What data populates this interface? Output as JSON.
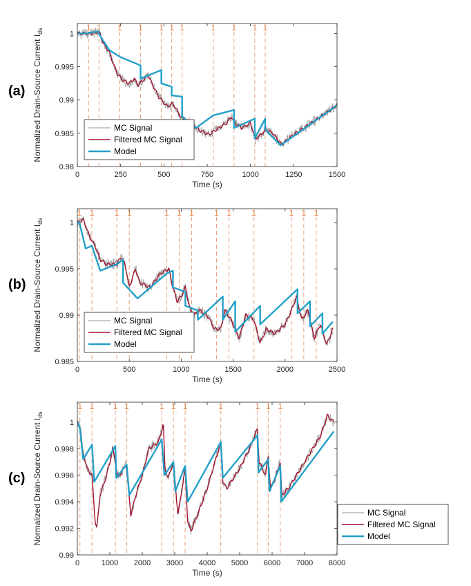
{
  "figure": {
    "ylabel": "Normalized Drain-Source Current I",
    "ylabel_sub": "ds",
    "legend": [
      "MC Signal",
      "Filtered MC Signal",
      "Model"
    ],
    "colors": {
      "mc": "#a9a9a9",
      "filtered": "#a2142f",
      "model": "#22a0c8",
      "event": "#e8a07a",
      "eventText": "#e07b39",
      "axis": "#262626"
    }
  },
  "chart_data": [
    {
      "type": "line",
      "panel_label": "(a)",
      "xlabel": "Time (s)",
      "xlim": [
        0,
        1500
      ],
      "ylim": [
        0.98,
        1.0015
      ],
      "xticks": [
        0,
        250,
        500,
        750,
        1000,
        1250,
        1500
      ],
      "xtick_labels": [
        "0",
        "250",
        "500",
        "750",
        "1000",
        "1250",
        "1500"
      ],
      "yticks": [
        0.98,
        0.985,
        0.99,
        0.995,
        1
      ],
      "ytick_labels": [
        "0.98",
        "0.985",
        "0.99",
        "0.995",
        "1"
      ],
      "event_marker": "1",
      "events": [
        65,
        125,
        245,
        365,
        485,
        545,
        605,
        785,
        905,
        1025,
        1085
      ],
      "model": {
        "x": [
          0,
          65,
          65,
          125,
          125,
          185,
          185,
          245,
          245,
          365,
          365,
          485,
          485,
          545,
          545,
          605,
          605,
          685,
          785,
          785,
          905,
          905,
          1025,
          1025,
          1085,
          1085,
          1175,
          1500
        ],
        "y": [
          1.0,
          1.0,
          1.0001,
          1.0003,
          0.9999,
          0.9975,
          0.9975,
          0.9965,
          0.9965,
          0.9952,
          0.9932,
          0.9945,
          0.9925,
          0.992,
          0.9907,
          0.9905,
          0.9875,
          0.9858,
          0.9877,
          0.9877,
          0.9885,
          0.9858,
          0.9872,
          0.9842,
          0.9872,
          0.9855,
          0.9832,
          0.9892
        ]
      },
      "signal": {
        "x": [
          0,
          100,
          120,
          130,
          150,
          185,
          200,
          230,
          260,
          300,
          330,
          350,
          380,
          410,
          430,
          470,
          520,
          550,
          575,
          600,
          640,
          700,
          760,
          800,
          860,
          890,
          910,
          950,
          1000,
          1030,
          1060,
          1090,
          1130,
          1180,
          1250,
          1350,
          1500
        ],
        "y": [
          1.0,
          1.0,
          1.0003,
          1.0,
          0.9985,
          0.9972,
          0.996,
          0.994,
          0.993,
          0.9925,
          0.9932,
          0.9922,
          0.993,
          0.9937,
          0.9925,
          0.9905,
          0.989,
          0.9895,
          0.9885,
          0.9873,
          0.9868,
          0.9855,
          0.9848,
          0.9855,
          0.9865,
          0.9875,
          0.9865,
          0.9858,
          0.9865,
          0.9842,
          0.9848,
          0.9855,
          0.985,
          0.9833,
          0.9848,
          0.9865,
          0.9892
        ]
      }
    },
    {
      "type": "line",
      "panel_label": "(b)",
      "xlabel": "Time (s)",
      "xlim": [
        0,
        2500
      ],
      "ylim": [
        0.985,
        1.0015
      ],
      "xticks": [
        0,
        500,
        1000,
        1500,
        2000,
        2500
      ],
      "xtick_labels": [
        "0",
        "500",
        "1000",
        "1500",
        "2000",
        "2500"
      ],
      "yticks": [
        0.985,
        0.99,
        0.995,
        1
      ],
      "ytick_labels": [
        "0.985",
        "0.99",
        "0.995",
        "1"
      ],
      "event_marker": "1",
      "events": [
        20,
        140,
        380,
        500,
        860,
        980,
        1100,
        1340,
        1460,
        1700,
        2060,
        2180,
        2300
      ],
      "model": {
        "x": [
          0,
          20,
          20,
          80,
          140,
          140,
          220,
          380,
          380,
          440,
          440,
          580,
          860,
          920,
          920,
          1040,
          1040,
          1160,
          1160,
          1400,
          1400,
          1520,
          1520,
          1760,
          1760,
          2120,
          2120,
          2240,
          2240,
          2360,
          2360,
          2460
        ],
        "y": [
          1.0,
          1.0,
          1.0,
          0.9972,
          0.9975,
          0.9975,
          0.9948,
          0.9955,
          0.9955,
          0.996,
          0.9935,
          0.9918,
          0.9945,
          0.9948,
          0.993,
          0.9925,
          0.991,
          0.9905,
          0.9895,
          0.992,
          0.9895,
          0.9915,
          0.9882,
          0.991,
          0.989,
          0.9928,
          0.9902,
          0.9915,
          0.9888,
          0.9902,
          0.988,
          0.9893
        ]
      },
      "signal": {
        "x": [
          0,
          60,
          100,
          140,
          170,
          220,
          280,
          380,
          420,
          460,
          500,
          560,
          600,
          700,
          800,
          880,
          920,
          960,
          1000,
          1040,
          1080,
          1120,
          1180,
          1250,
          1320,
          1380,
          1420,
          1480,
          1560,
          1620,
          1700,
          1760,
          1820,
          1900,
          2000,
          2060,
          2110,
          2160,
          2220,
          2280,
          2340,
          2400,
          2460
        ],
        "y": [
          1.0,
          1.0003,
          0.999,
          0.998,
          0.9975,
          0.996,
          0.9955,
          0.9955,
          0.9963,
          0.9955,
          0.993,
          0.995,
          0.9935,
          0.993,
          0.9945,
          0.995,
          0.993,
          0.9915,
          0.992,
          0.993,
          0.9908,
          0.99,
          0.9905,
          0.99,
          0.9885,
          0.9885,
          0.9905,
          0.9895,
          0.9875,
          0.99,
          0.9895,
          0.987,
          0.9885,
          0.988,
          0.989,
          0.9905,
          0.992,
          0.9895,
          0.9905,
          0.9875,
          0.989,
          0.9868,
          0.9885
        ]
      }
    },
    {
      "type": "line",
      "panel_label": "(c)",
      "xlabel": "Time (s)",
      "xlim": [
        0,
        8000
      ],
      "ylim": [
        0.99,
        1.0015
      ],
      "xticks": [
        0,
        1000,
        2000,
        3000,
        4000,
        5000,
        6000,
        7000,
        8000
      ],
      "xtick_labels": [
        "0",
        "1000",
        "2000",
        "3000",
        "4000",
        "5000",
        "6000",
        "7000",
        "8000"
      ],
      "yticks": [
        0.99,
        0.992,
        0.994,
        0.996,
        0.998,
        1
      ],
      "ytick_labels": [
        "0.99",
        "0.992",
        "0.994",
        "0.996",
        "0.998",
        "1"
      ],
      "event_marker": "1",
      "events": [
        80,
        450,
        1170,
        1520,
        2600,
        2960,
        3320,
        4420,
        5550,
        5880,
        6250
      ],
      "model": {
        "x": [
          0,
          80,
          180,
          450,
          520,
          1170,
          1200,
          1520,
          1600,
          2600,
          2680,
          2960,
          3020,
          3320,
          3400,
          4420,
          4480,
          5550,
          5580,
          5880,
          5920,
          6250,
          6280,
          7900
        ],
        "y": [
          1.0,
          0.9995,
          0.9972,
          0.9983,
          0.9955,
          0.9982,
          0.9958,
          0.9968,
          0.9945,
          0.9987,
          0.996,
          0.997,
          0.9948,
          0.9967,
          0.994,
          0.9985,
          0.9958,
          0.999,
          0.9962,
          0.9972,
          0.9948,
          0.9967,
          0.994,
          0.9993
        ]
      },
      "signal": {
        "x": [
          0,
          100,
          150,
          300,
          450,
          550,
          600,
          700,
          900,
          1100,
          1170,
          1250,
          1350,
          1500,
          1650,
          1800,
          2000,
          2200,
          2500,
          2650,
          2700,
          2800,
          2960,
          3100,
          3320,
          3400,
          3500,
          3700,
          4000,
          4300,
          4420,
          4480,
          4600,
          5000,
          5300,
          5550,
          5600,
          5800,
          5880,
          5950,
          6100,
          6250,
          6300,
          6500,
          7000,
          7500,
          7700,
          7900
        ],
        "y": [
          1.0,
          0.9995,
          0.998,
          0.9965,
          0.996,
          0.9925,
          0.992,
          0.9945,
          0.996,
          0.998,
          0.997,
          0.9958,
          0.9962,
          0.9968,
          0.993,
          0.9945,
          0.996,
          0.998,
          0.9985,
          0.9998,
          0.9965,
          0.9958,
          0.997,
          0.993,
          0.9965,
          0.9925,
          0.9918,
          0.993,
          0.995,
          0.9975,
          0.9985,
          0.9955,
          0.995,
          0.9965,
          0.998,
          0.9995,
          0.997,
          0.996,
          0.9975,
          0.995,
          0.9958,
          0.997,
          0.9945,
          0.995,
          0.997,
          0.999,
          1.0005,
          1.0
        ]
      }
    }
  ]
}
